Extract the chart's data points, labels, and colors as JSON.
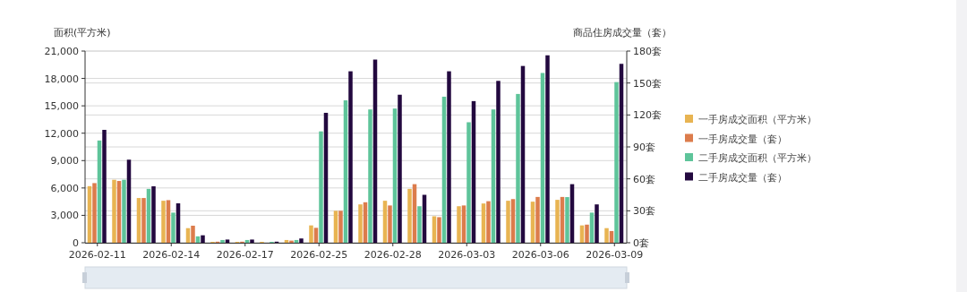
{
  "chart_data": {
    "type": "bar",
    "ylabel": "面积(平方米)",
    "y2label": "商品住房成交量（套）",
    "categories": [
      "2026-02-11",
      null,
      null,
      "2026-02-14",
      null,
      null,
      "2026-02-17",
      null,
      null,
      "2026-02-25",
      null,
      null,
      "2026-02-28",
      null,
      null,
      "2026-03-03",
      null,
      null,
      "2026-03-06",
      null,
      null,
      "2026-03-09"
    ],
    "series": [
      {
        "name": "一手房成交面积（平方米）",
        "color": "#e8b452",
        "values": [
          6200,
          6900,
          4900,
          4600,
          1600,
          100,
          100,
          100,
          300,
          1900,
          3500,
          4200,
          4600,
          5900,
          2900,
          4000,
          4300,
          4600,
          4500,
          4700,
          1900,
          1600
        ]
      },
      {
        "name": "一手房成交量（套）",
        "color": "#dc7c4c",
        "axis": "y2",
        "values": [
          56,
          58,
          42,
          40,
          16,
          1,
          1,
          0,
          2,
          14,
          30,
          38,
          35,
          55,
          24,
          35,
          39,
          41,
          43,
          43,
          17,
          11
        ]
      },
      {
        "name": "二手房成交面积（平方米）",
        "color": "#5ec49a",
        "values": [
          11200,
          6900,
          5900,
          3300,
          700,
          300,
          300,
          100,
          300,
          12200,
          15600,
          14600,
          14700,
          4000,
          16000,
          13200,
          14600,
          16300,
          18600,
          5000,
          3300,
          17600
        ]
      },
      {
        "name": "二手房成交量（套）",
        "color": "#23093f",
        "axis": "y2",
        "values": [
          106,
          78,
          53,
          37,
          7,
          3,
          3,
          1,
          4,
          122,
          161,
          172,
          139,
          45,
          161,
          133,
          152,
          166,
          176,
          55,
          36,
          168
        ]
      }
    ],
    "ylim": [
      0,
      21000
    ],
    "yticks": [
      0,
      {
        "value": 3000,
        "label": "3,000"
      },
      {
        "value": 6000,
        "label": "6,000"
      },
      {
        "value": 9000,
        "label": "9,000"
      },
      {
        "value": 12000,
        "label": "12,000"
      },
      {
        "value": 15000,
        "label": "15,000"
      },
      {
        "value": 18000,
        "label": "18,000"
      },
      {
        "value": 21000,
        "label": "21,000"
      }
    ],
    "y2lim": [
      0,
      180
    ],
    "y2ticks": [
      {
        "value": 0,
        "label": "0套"
      },
      {
        "value": 30,
        "label": "30套"
      },
      {
        "value": 60,
        "label": "60套"
      },
      {
        "value": 90,
        "label": "90套"
      },
      {
        "value": 120,
        "label": "120套"
      },
      {
        "value": 150,
        "label": "150套"
      },
      {
        "value": 180,
        "label": "180套"
      }
    ],
    "grid": true,
    "legend": "right"
  }
}
